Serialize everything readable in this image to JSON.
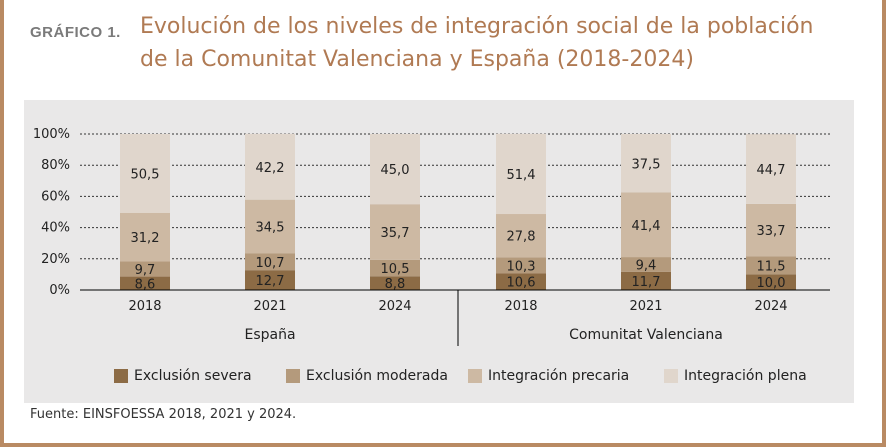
{
  "figure_label": "GRÁFICO 1.",
  "title_line1": "Evolución de los niveles de integración social de la población",
  "title_line2": "de la Comunitat Valenciana y España (2018-2024)",
  "source": "Fuente: EINSFOESSA 2018, 2021 y 2024.",
  "colors": {
    "exclusion_severa": "#8c6b45",
    "exclusion_moderada": "#b49a7c",
    "integracion_precaria": "#cdb9a3",
    "integracion_plena": "#e0d6cc",
    "title": "#b07a53",
    "frame": "#b98a63"
  },
  "chart_data": {
    "type": "bar",
    "stacked": true,
    "ylim": [
      0,
      100
    ],
    "yticks": [
      "0%",
      "20%",
      "40%",
      "60%",
      "80%",
      "100%"
    ],
    "groups": [
      {
        "name": "España",
        "categories": [
          "2018",
          "2021",
          "2024"
        ]
      },
      {
        "name": "Comunitat Valenciana",
        "categories": [
          "2018",
          "2021",
          "2024"
        ]
      }
    ],
    "categories": [
      "2018",
      "2021",
      "2024",
      "2018",
      "2021",
      "2024"
    ],
    "series": [
      {
        "name": "Exclusión severa",
        "values": [
          8.6,
          12.7,
          8.8,
          10.6,
          11.7,
          10.0
        ],
        "labels": [
          "8,6",
          "12,7",
          "8,8",
          "10,6",
          "11,7",
          "10,0"
        ]
      },
      {
        "name": "Exclusión moderada",
        "values": [
          9.7,
          10.7,
          10.5,
          10.3,
          9.4,
          11.5
        ],
        "labels": [
          "9,7",
          "10,7",
          "10,5",
          "10,3",
          "9,4",
          "11,5"
        ]
      },
      {
        "name": "Integración precaria",
        "values": [
          31.2,
          34.5,
          35.7,
          27.8,
          41.4,
          33.7
        ],
        "labels": [
          "31,2",
          "34,5",
          "35,7",
          "27,8",
          "41,4",
          "33,7"
        ]
      },
      {
        "name": "Integración plena",
        "values": [
          50.5,
          42.2,
          45.0,
          51.4,
          37.5,
          44.7
        ],
        "labels": [
          "50,5",
          "42,2",
          "45,0",
          "51,4",
          "37,5",
          "44,7"
        ]
      }
    ],
    "legend_position": "bottom"
  }
}
